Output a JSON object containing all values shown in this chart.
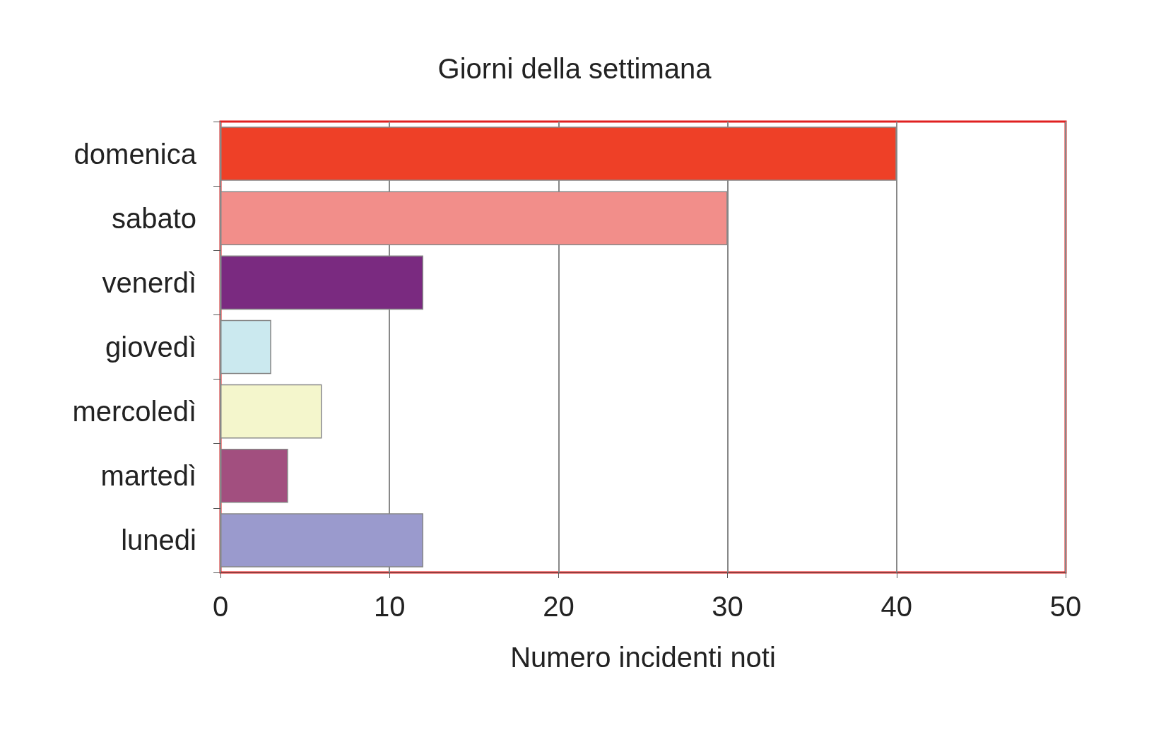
{
  "chart_data": {
    "type": "bar",
    "orientation": "horizontal",
    "title": "Giorni della settimana",
    "xlabel": "Numero incidenti noti",
    "categories": [
      "domenica",
      "sabato",
      "venerdì",
      "giovedì",
      "mercoledì",
      "martedì",
      "lunedi"
    ],
    "values": [
      40,
      30,
      12,
      3,
      6,
      4,
      12
    ],
    "colors": [
      "#ee4027",
      "#f28e8a",
      "#7a2a80",
      "#cbe9ef",
      "#f4f6cc",
      "#a24f7f",
      "#9a9acd"
    ],
    "xlim": [
      0,
      50
    ],
    "xticks": [
      0,
      10,
      20,
      30,
      40,
      50
    ],
    "grid": "x"
  }
}
